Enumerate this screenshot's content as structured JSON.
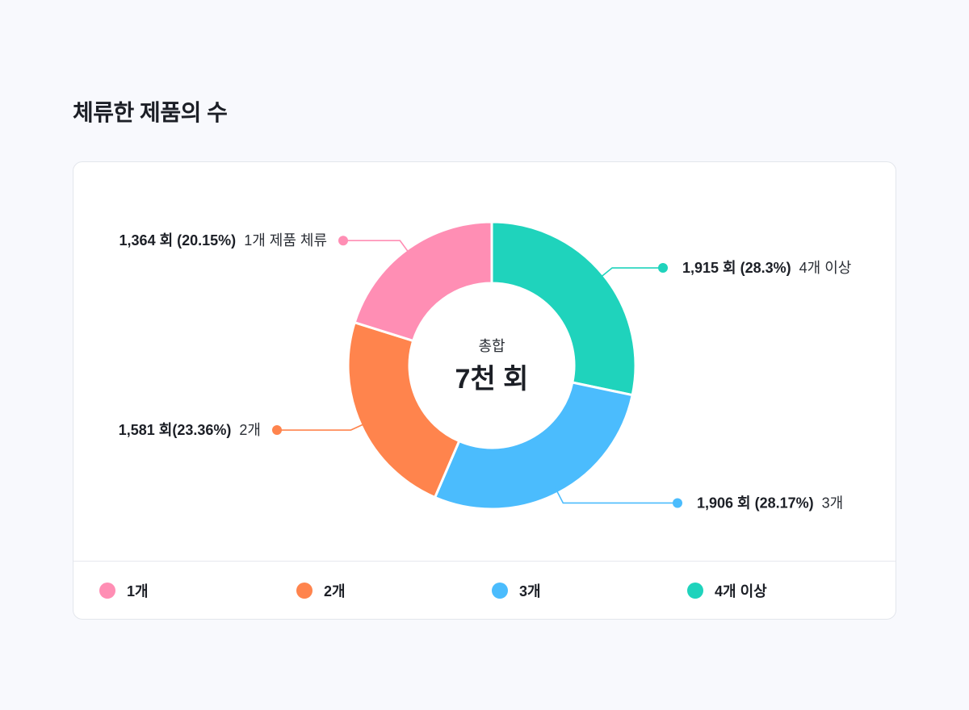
{
  "title": "체류한 제품의 수",
  "chart_data": {
    "type": "pie",
    "variant": "donut",
    "center_label": "총합",
    "center_value": "7천 회",
    "slices": [
      {
        "label": "4개 이상",
        "value": 1915,
        "percent": 28.3,
        "value_text": "1,915 회 (28.3%)",
        "desc_text": "4개 이상",
        "color": "#1fd3bc",
        "side": "right"
      },
      {
        "label": "3개",
        "value": 1906,
        "percent": 28.17,
        "value_text": "1,906 회 (28.17%)",
        "desc_text": "3개",
        "color": "#4bbcfd",
        "side": "right"
      },
      {
        "label": "2개",
        "value": 1581,
        "percent": 23.36,
        "value_text": "1,581 회(23.36%)",
        "desc_text": "2개",
        "color": "#ff844d",
        "side": "left"
      },
      {
        "label": "1개",
        "value": 1364,
        "percent": 20.15,
        "value_text": "1,364 회 (20.15%)",
        "desc_text": "1개 제품 체류",
        "color": "#ff8eb4",
        "side": "left"
      }
    ],
    "legend": [
      {
        "label": "1개",
        "color": "#ff8eb4"
      },
      {
        "label": "2개",
        "color": "#ff844d"
      },
      {
        "label": "3개",
        "color": "#4bbcfd"
      },
      {
        "label": "4개 이상",
        "color": "#1fd3bc"
      }
    ],
    "legend_position": "bottom"
  }
}
